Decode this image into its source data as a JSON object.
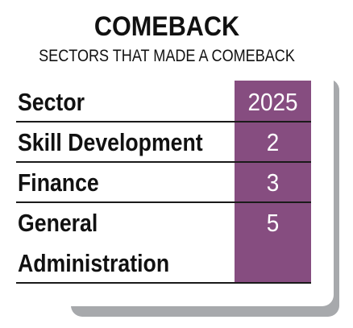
{
  "title": "COMEBACK",
  "subtitle": "SECTORS THAT MADE A COMEBACK",
  "table": {
    "header": {
      "label": "Sector",
      "year": "2025"
    },
    "rows": [
      {
        "label": "Skill Development",
        "value": "2"
      },
      {
        "label": "Finance",
        "value": "3"
      },
      {
        "label": "General",
        "label2": "Administration",
        "value": "5"
      }
    ]
  },
  "colors": {
    "accent": "#864d80",
    "shadow": "#a7a9ac",
    "text": "#111111"
  }
}
